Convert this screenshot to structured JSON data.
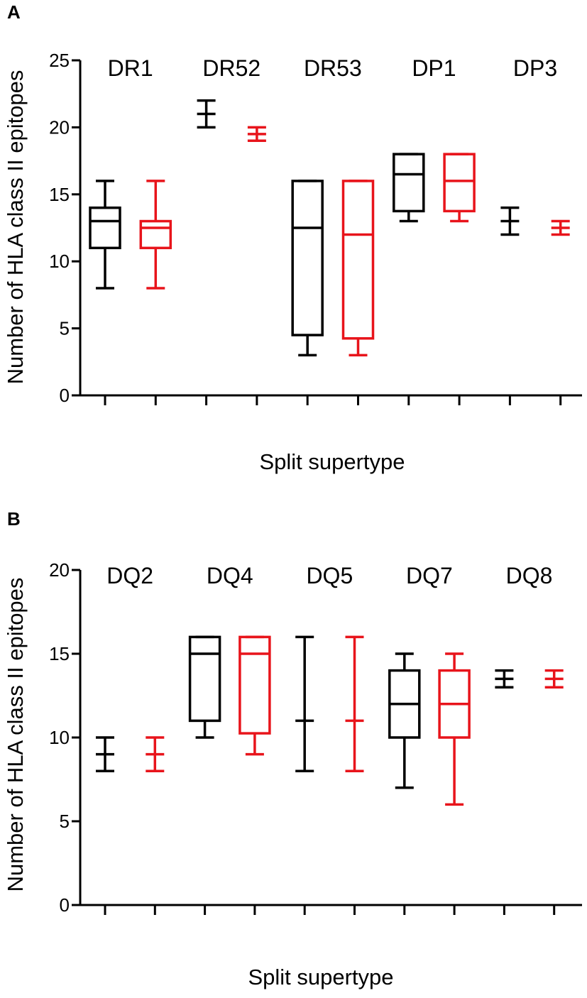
{
  "chart_data": [
    {
      "type": "box",
      "panel_label": "A",
      "title": "",
      "xlabel": "Split supertype",
      "ylabel": "Number of HLA class II epitopes",
      "ylim": [
        0,
        25
      ],
      "yticks": [
        "0",
        "5",
        "10",
        "15",
        "20",
        "25"
      ],
      "categories": [
        "DR1",
        "DR52",
        "DR53",
        "DP1",
        "DP3"
      ],
      "series": [
        {
          "name": "black",
          "color": "#000000",
          "boxes": [
            {
              "group": "DR1",
              "min": 8,
              "q1": 11,
              "median": 13,
              "q3": 14,
              "max": 16
            },
            {
              "group": "DR52",
              "min": 20,
              "q1": 21,
              "median": 21,
              "q3": 21,
              "max": 22
            },
            {
              "group": "DR53",
              "min": 3,
              "q1": 4.5,
              "median": 12.5,
              "q3": 16,
              "max": 16
            },
            {
              "group": "DP1",
              "min": 13,
              "q1": 13.75,
              "median": 16.5,
              "q3": 18,
              "max": 18
            },
            {
              "group": "DP3",
              "min": 12,
              "q1": 13,
              "median": 13,
              "q3": 13,
              "max": 14
            }
          ]
        },
        {
          "name": "red",
          "color": "#e8141b",
          "boxes": [
            {
              "group": "DR1",
              "min": 8,
              "q1": 11,
              "median": 12.5,
              "q3": 13,
              "max": 16
            },
            {
              "group": "DR52",
              "min": 19,
              "q1": 19.5,
              "median": 19.5,
              "q3": 19.5,
              "max": 20
            },
            {
              "group": "DR53",
              "min": 3,
              "q1": 4.25,
              "median": 12,
              "q3": 16,
              "max": 16
            },
            {
              "group": "DP1",
              "min": 13,
              "q1": 13.75,
              "median": 16,
              "q3": 18,
              "max": 18
            },
            {
              "group": "DP3",
              "min": 12,
              "q1": 12.5,
              "median": 12.5,
              "q3": 12.5,
              "max": 13
            }
          ]
        }
      ]
    },
    {
      "type": "box",
      "panel_label": "B",
      "title": "",
      "xlabel": "Split supertype",
      "ylabel": "Number of HLA class II epitopes",
      "ylim": [
        0,
        20
      ],
      "yticks": [
        "0",
        "5",
        "10",
        "15",
        "20"
      ],
      "categories": [
        "DQ2",
        "DQ4",
        "DQ5",
        "DQ7",
        "DQ8"
      ],
      "series": [
        {
          "name": "black",
          "color": "#000000",
          "boxes": [
            {
              "group": "DQ2",
              "min": 8,
              "q1": 9,
              "median": 9,
              "q3": 9,
              "max": 10
            },
            {
              "group": "DQ4",
              "min": 10,
              "q1": 11,
              "median": 15,
              "q3": 16,
              "max": 16
            },
            {
              "group": "DQ5",
              "min": 8,
              "q1": 11,
              "median": 11,
              "q3": 11,
              "max": 16
            },
            {
              "group": "DQ7",
              "min": 7,
              "q1": 10,
              "median": 12,
              "q3": 14,
              "max": 15
            },
            {
              "group": "DQ8",
              "min": 13,
              "q1": 13.5,
              "median": 13.5,
              "q3": 13.5,
              "max": 14
            }
          ]
        },
        {
          "name": "red",
          "color": "#e8141b",
          "boxes": [
            {
              "group": "DQ2",
              "min": 8,
              "q1": 9,
              "median": 9,
              "q3": 9,
              "max": 10
            },
            {
              "group": "DQ4",
              "min": 9,
              "q1": 10.25,
              "median": 15,
              "q3": 16,
              "max": 16
            },
            {
              "group": "DQ5",
              "min": 8,
              "q1": 11,
              "median": 11,
              "q3": 11,
              "max": 16
            },
            {
              "group": "DQ7",
              "min": 6,
              "q1": 10,
              "median": 12,
              "q3": 14,
              "max": 15
            },
            {
              "group": "DQ8",
              "min": 13,
              "q1": 13.5,
              "median": 13.5,
              "q3": 13.5,
              "max": 14
            }
          ]
        }
      ]
    }
  ]
}
